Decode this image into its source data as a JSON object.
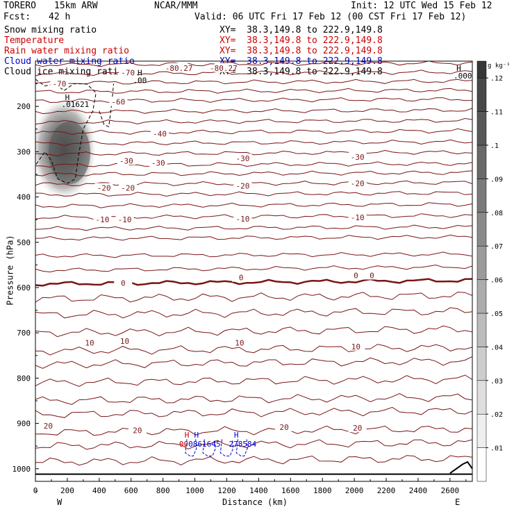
{
  "header": {
    "model": "TORERO",
    "resolution": "15km ARW",
    "org": "NCAR/MMM",
    "init": "Init: 12 UTC Wed 15 Feb 12",
    "fcst_label": "Fcst:",
    "fcst_hours": "42 h",
    "valid": "Valid: 06 UTC Fri 17 Feb 12 (00 CST Fri 17 Feb 12)"
  },
  "fields": [
    {
      "name": "Snow mixing ratio",
      "color": "#000000",
      "xy": "XY=  38.3,149.8 to 222.9,149.8"
    },
    {
      "name": "Temperature",
      "color": "#cc0000",
      "xy": "XY=  38.3,149.8 to 222.9,149.8"
    },
    {
      "name": "Rain water mixing ratio",
      "color": "#cc0000",
      "xy": "XY=  38.3,149.8 to 222.9,149.8"
    },
    {
      "name": "Cloud water mixing ratio",
      "color": "#0000cc",
      "xy": "XY=  38.3,149.8 to 222.9,149.8"
    },
    {
      "name": "Cloud ice mixing ratio",
      "color": "#000000",
      "xy": "XY=  38.3,149.8 to 222.9,149.8"
    }
  ],
  "chart_data": {
    "type": "cross-section",
    "xlabel": "Distance (km)",
    "ylabel": "Pressure (hPa)",
    "x_ticks": [
      0,
      200,
      400,
      600,
      800,
      1000,
      1200,
      1400,
      1600,
      1800,
      2000,
      2200,
      2400,
      2600
    ],
    "x_tick_labels": [
      "0",
      "200",
      "400",
      "600",
      "800",
      "1000",
      "1200",
      "1400",
      "1600",
      "1800",
      "2000",
      "2200",
      "2400",
      "2600"
    ],
    "y_ticks": [
      200,
      300,
      400,
      500,
      600,
      700,
      800,
      900,
      1000
    ],
    "y_tick_labels": [
      "200",
      "300",
      "400",
      "500",
      "600",
      "700",
      "800",
      "900",
      "1000"
    ],
    "xlim": [
      0,
      2740
    ],
    "ylim": [
      1050,
      100
    ],
    "west_label": "W",
    "east_label": "E",
    "colorbar": {
      "unit": "g kg⁻¹",
      "levels": [
        0.01,
        0.02,
        0.03,
        0.04,
        0.05,
        0.06,
        0.07,
        0.08,
        0.09,
        0.1,
        0.11,
        0.12
      ],
      "labels": [
        ".01",
        ".02",
        ".03",
        ".04",
        ".05",
        ".06",
        ".07",
        ".08",
        ".09",
        ".1",
        ".11",
        ".12"
      ]
    },
    "temperature_labels": [
      {
        "text": "-80.27",
        "x": 900,
        "p": 115
      },
      {
        "text": "-80.27",
        "x": 1180,
        "p": 115
      },
      {
        "text": "-70",
        "x": 150,
        "p": 150
      },
      {
        "text": "-70",
        "x": 580,
        "p": 125
      },
      {
        "text": "-60",
        "x": 520,
        "p": 190
      },
      {
        "text": "-40",
        "x": 780,
        "p": 260
      },
      {
        "text": "-30",
        "x": 570,
        "p": 320
      },
      {
        "text": "-30",
        "x": 770,
        "p": 325
      },
      {
        "text": "-30",
        "x": 1300,
        "p": 315
      },
      {
        "text": "-30",
        "x": 2020,
        "p": 312
      },
      {
        "text": "-20",
        "x": 430,
        "p": 380
      },
      {
        "text": "-20",
        "x": 580,
        "p": 380
      },
      {
        "text": "-20",
        "x": 1300,
        "p": 375
      },
      {
        "text": "-20",
        "x": 2020,
        "p": 370
      },
      {
        "text": "-10",
        "x": 420,
        "p": 450
      },
      {
        "text": "-10",
        "x": 560,
        "p": 450
      },
      {
        "text": "-10",
        "x": 1300,
        "p": 448
      },
      {
        "text": "-10",
        "x": 2020,
        "p": 445
      },
      {
        "text": "0",
        "x": 550,
        "p": 590
      },
      {
        "text": "0",
        "x": 1290,
        "p": 578
      },
      {
        "text": "0",
        "x": 2010,
        "p": 573
      },
      {
        "text": "0",
        "x": 2110,
        "p": 573
      },
      {
        "text": "10",
        "x": 340,
        "p": 722
      },
      {
        "text": "10",
        "x": 560,
        "p": 718
      },
      {
        "text": "10",
        "x": 1280,
        "p": 722
      },
      {
        "text": "10",
        "x": 2010,
        "p": 730
      },
      {
        "text": "20",
        "x": 80,
        "p": 905
      },
      {
        "text": "20",
        "x": 640,
        "p": 915
      },
      {
        "text": "20",
        "x": 1560,
        "p": 908
      },
      {
        "text": "20",
        "x": 2020,
        "p": 910
      }
    ],
    "max_labels": [
      {
        "text": "H",
        "x": 200,
        "p": 180,
        "color": "#000000"
      },
      {
        "text": ".01621",
        "x": 250,
        "p": 195,
        "color": "#000000"
      },
      {
        "text": "H",
        "x": 655,
        "p": 125,
        "color": "#000000"
      },
      {
        "text": ".00",
        "x": 655,
        "p": 142,
        "color": "#000000"
      },
      {
        "text": "H",
        "x": 2655,
        "p": 115,
        "color": "#000000"
      },
      {
        "text": ".000",
        "x": 2680,
        "p": 132,
        "color": "#000000"
      },
      {
        "text": "H",
        "x": 950,
        "p": 925,
        "color": "#cc0000"
      },
      {
        "text": "H",
        "x": 1010,
        "p": 925,
        "color": "#0000cc"
      },
      {
        "text": "H",
        "x": 1260,
        "p": 925,
        "color": "#0000cc"
      },
      {
        "text": "00",
        "x": 930,
        "p": 945,
        "color": "#cc0000"
      },
      {
        "text": "0861645",
        "x": 1060,
        "p": 945,
        "color": "#0000cc"
      },
      {
        "text": "278584",
        "x": 1300,
        "p": 945,
        "color": "#0000cc"
      }
    ]
  }
}
